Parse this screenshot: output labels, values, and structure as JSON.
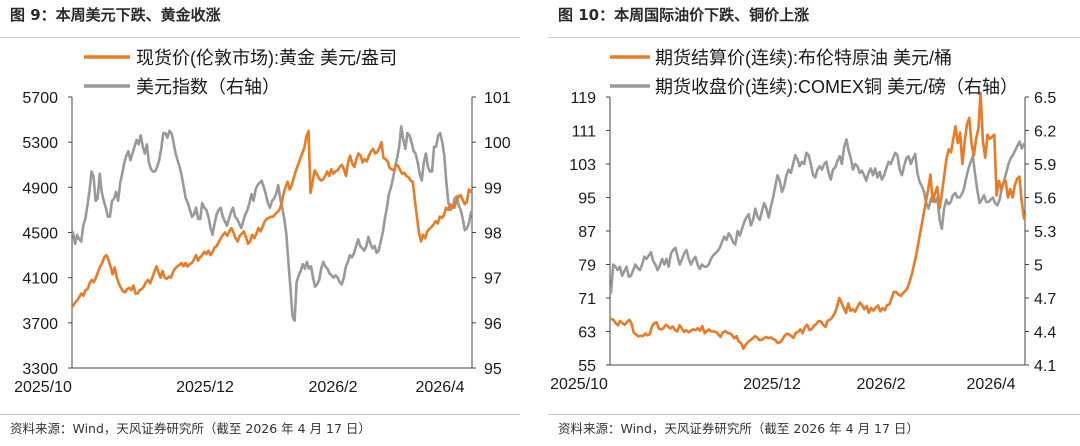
{
  "colors": {
    "gold": "#EB7A23",
    "gray": "#999999",
    "axis": "#444444",
    "text": "#1a1a1a"
  },
  "chart_data": [
    {
      "type": "line",
      "figure_title": "图 9：本周美元下跌、黄金收涨",
      "source": "资料来源：Wind，天风证券研究所（截至 2026 年 4 月 17 日）",
      "x_ticks": [
        "2025/10",
        "2025/12",
        "2026/2",
        "2026/4"
      ],
      "ylim_left": [
        3300,
        5700
      ],
      "yticks_left": [
        "5700",
        "5300",
        "4900",
        "4500",
        "4100",
        "3700",
        "3300"
      ],
      "ylim_right": [
        95,
        101
      ],
      "yticks_right": [
        "101",
        "100",
        "99",
        "98",
        "97",
        "96",
        "95"
      ],
      "legend_location": "top-left",
      "series": [
        {
          "name": "现货价(伦敦市场):黄金 美元/盎司",
          "axis": "left",
          "color": "#EB7A23",
          "values": [
            3850,
            3880,
            3900,
            3930,
            3960,
            3940,
            3990,
            4000,
            4050,
            4080,
            4060,
            4100,
            4150,
            4200,
            4230,
            4280,
            4300,
            4260,
            4200,
            4130,
            4190,
            4100,
            4050,
            4010,
            3980,
            3970,
            4000,
            4010,
            3990,
            4030,
            3960,
            3960,
            3990,
            4000,
            4020,
            4060,
            4080,
            4050,
            4100,
            4150,
            4200,
            4150,
            4100,
            4160,
            4100,
            4090,
            4110,
            4100,
            4150,
            4180,
            4200,
            4210,
            4230,
            4200,
            4230,
            4200,
            4220,
            4230,
            4260,
            4300,
            4250,
            4280,
            4300,
            4330,
            4310,
            4340,
            4300,
            4330,
            4370,
            4380,
            4420,
            4450,
            4480,
            4500,
            4470,
            4510,
            4540,
            4500,
            4450,
            4420,
            4470,
            4490,
            4510,
            4460,
            4400,
            4420,
            4480,
            4450,
            4490,
            4540,
            4510,
            4550,
            4600,
            4620,
            4630,
            4640,
            4640,
            4660,
            4680,
            4700,
            4750,
            4840,
            4900,
            4950,
            4880,
            4920,
            4990,
            5050,
            5100,
            5150,
            5200,
            5250,
            5350,
            5400,
            4850,
            4950,
            5050,
            5020,
            4980,
            4960,
            4970,
            5000,
            5040,
            5000,
            5060,
            5020,
            5040,
            5050,
            5080,
            5100,
            5060,
            5000,
            5120,
            5180,
            5110,
            5080,
            5150,
            5200,
            5180,
            5120,
            5150,
            5130,
            5180,
            5220,
            5240,
            5200,
            5210,
            5250,
            5300,
            5160,
            5150,
            5130,
            5070,
            5060,
            5050,
            5100,
            5090,
            5050,
            5020,
            5030,
            5000,
            4990,
            4960,
            4950,
            4800,
            4650,
            4500,
            4420,
            4480,
            4450,
            4510,
            4530,
            4550,
            4570,
            4600,
            4580,
            4640,
            4630,
            4650,
            4720,
            4700,
            4750,
            4730,
            4720,
            4780,
            4820,
            4830,
            4790,
            4750,
            4770,
            4880,
            4860
          ]
        },
        {
          "name": "美元指数（右轴）",
          "axis": "right",
          "color": "#999999",
          "values": [
            98.0,
            97.75,
            97.95,
            97.85,
            97.8,
            98.15,
            98.3,
            98.6,
            98.9,
            99.35,
            99.25,
            98.7,
            98.75,
            99.3,
            98.9,
            98.7,
            98.55,
            98.35,
            98.35,
            98.7,
            98.75,
            98.9,
            98.7,
            99.1,
            99.3,
            99.55,
            99.7,
            99.8,
            99.6,
            99.75,
            99.9,
            100.05,
            99.95,
            100.15,
            99.9,
            99.75,
            99.95,
            99.55,
            99.4,
            99.35,
            99.35,
            99.45,
            99.6,
            99.85,
            100.2,
            100.2,
            100.1,
            100.25,
            100.2,
            100.0,
            99.75,
            99.6,
            99.45,
            99.25,
            99.0,
            98.75,
            98.65,
            98.5,
            98.35,
            98.4,
            98.55,
            98.3,
            98.3,
            98.65,
            98.55,
            98.5,
            98.35,
            98.1,
            97.95,
            98.2,
            98.4,
            98.5,
            98.55,
            98.35,
            98.25,
            98.15,
            98.3,
            98.45,
            98.55,
            98.35,
            98.3,
            98.2,
            98.1,
            98.25,
            98.4,
            98.5,
            98.65,
            98.85,
            98.7,
            98.95,
            99.05,
            99.1,
            99.15,
            99.0,
            98.85,
            98.65,
            98.55,
            98.7,
            98.75,
            98.85,
            99.05,
            98.75,
            98.55,
            98.3,
            97.95,
            97.35,
            96.75,
            96.15,
            96.05,
            96.9,
            97.05,
            97.15,
            97.3,
            97.2,
            97.35,
            97.2,
            97.25,
            97.0,
            96.8,
            96.85,
            96.95,
            97.2,
            97.35,
            97.25,
            97.2,
            97.1,
            97.05,
            97.0,
            97.05,
            97.0,
            96.9,
            96.85,
            97.0,
            97.25,
            97.35,
            97.5,
            97.45,
            97.55,
            97.7,
            97.85,
            97.7,
            97.65,
            97.6,
            97.7,
            97.9,
            97.75,
            97.65,
            97.7,
            97.55,
            97.6,
            97.8,
            98.0,
            98.3,
            98.55,
            98.85,
            99.0,
            99.2,
            99.45,
            99.65,
            99.9,
            100.35,
            100.05,
            99.85,
            100.2,
            100.15,
            100.0,
            99.8,
            99.75,
            99.55,
            99.3,
            99.15,
            99.55,
            99.75,
            99.45,
            99.35,
            99.35,
            99.9,
            99.9,
            100.15,
            100.2,
            100.0,
            99.7,
            99.1,
            98.65,
            98.5,
            98.55,
            98.75,
            98.8,
            98.6,
            98.5,
            98.3,
            98.05,
            98.1,
            98.2,
            98.45
          ]
        }
      ]
    },
    {
      "type": "line",
      "figure_title": "图 10：本周国际油价下跌、铜价上涨",
      "source": "资料来源：Wind，天风证券研究所（截至 2026 年 4 月 17 日）",
      "x_ticks": [
        "2025/10",
        "2025/12",
        "2026/2",
        "2026/4"
      ],
      "ylim_left": [
        55,
        119
      ],
      "yticks_left": [
        "119",
        "111",
        "103",
        "95",
        "87",
        "79",
        "71",
        "63",
        "55"
      ],
      "ylim_right": [
        4.1,
        6.5
      ],
      "yticks_right": [
        "6.5",
        "6.2",
        "5.9",
        "5.6",
        "5.3",
        "5",
        "4.7",
        "4.4",
        "4.1"
      ],
      "legend_location": "top-left",
      "series": [
        {
          "name": "期货结算价(连续):布伦特原油 美元/桶",
          "axis": "left",
          "color": "#EB7A23",
          "values": [
            66.0,
            65.8,
            65.0,
            64.5,
            65.5,
            65.0,
            64.6,
            65.3,
            65.8,
            64.9,
            62.7,
            62.3,
            61.8,
            62.0,
            61.9,
            62.5,
            62.1,
            62.4,
            64.3,
            65.0,
            65.2,
            63.7,
            63.5,
            63.8,
            64.6,
            64.2,
            63.7,
            64.2,
            63.4,
            63.0,
            64.5,
            63.8,
            62.9,
            63.3,
            62.8,
            63.2,
            63.5,
            63.3,
            63.8,
            63.2,
            64.3,
            62.6,
            63.1,
            63.5,
            63.0,
            63.0,
            62.9,
            62.3,
            61.7,
            62.8,
            63.1,
            62.7,
            62.6,
            62.2,
            61.4,
            61.9,
            60.6,
            60.2,
            58.9,
            59.8,
            60.5,
            60.9,
            61.3,
            61.9,
            61.6,
            61.0,
            61.0,
            61.4,
            61.7,
            61.4,
            61.6,
            61.2,
            61.0,
            60.3,
            60.4,
            61.0,
            61.9,
            62.5,
            62.3,
            61.9,
            61.5,
            62.7,
            62.9,
            63.5,
            62.6,
            64.1,
            64.6,
            63.3,
            63.6,
            64.4,
            64.8,
            65.5,
            65.4,
            64.6,
            64.1,
            65.6,
            65.8,
            66.4,
            67.3,
            68.8,
            71.0,
            69.9,
            68.6,
            67.4,
            69.7,
            67.9,
            68.3,
            67.7,
            68.8,
            69.9,
            69.3,
            68.3,
            69.1,
            67.5,
            68.6,
            68.0,
            68.7,
            69.2,
            67.8,
            68.6,
            68.1,
            69.3,
            69.5,
            71.0,
            72.5,
            72.4,
            71.8,
            71.5,
            72.2,
            72.7,
            73.4,
            75.1,
            77.0,
            79.5,
            82.0,
            85.0,
            88.0,
            91.0,
            94.0,
            97.0,
            100.5,
            94.0,
            96.0,
            97.5,
            92.5,
            96.0,
            100.0,
            104.2,
            106.5,
            105.8,
            109.0,
            112.0,
            108.0,
            110.5,
            103.0,
            108.5,
            112.5,
            114.0,
            108.0,
            105.0,
            109.0,
            111.5,
            120.0,
            108.5,
            104.5,
            110.0,
            109.0,
            109.5,
            110.0,
            95.5,
            99.0,
            97.0,
            98.5,
            99.0,
            95.0,
            97.0,
            95.0,
            98.0,
            99.5,
            100.0,
            94.0,
            90.0
          ]
        },
        {
          "name": "期货收盘价(连续):COMEX铜 美元/磅（右轴）",
          "axis": "right",
          "color": "#999999",
          "values": [
            4.75,
            5.0,
            4.98,
            4.95,
            4.98,
            4.9,
            4.94,
            4.98,
            4.89,
            4.9,
            4.95,
            5.0,
            4.97,
            4.95,
            5.0,
            5.07,
            5.05,
            5.08,
            5.11,
            5.03,
            5.0,
            4.95,
            4.99,
            5.05,
            5.0,
            5.05,
            4.98,
            5.1,
            5.13,
            5.15,
            5.07,
            5.0,
            5.05,
            5.1,
            5.13,
            5.05,
            5.0,
            5.04,
            5.07,
            5.0,
            4.96,
            5.0,
            4.98,
            4.98,
            5.0,
            5.05,
            5.08,
            5.1,
            5.12,
            5.15,
            5.2,
            5.25,
            5.22,
            5.28,
            5.25,
            5.2,
            5.18,
            5.3,
            5.26,
            5.32,
            5.38,
            5.42,
            5.45,
            5.35,
            5.4,
            5.5,
            5.43,
            5.4,
            5.48,
            5.55,
            5.5,
            5.42,
            5.52,
            5.6,
            5.7,
            5.8,
            5.75,
            5.65,
            5.7,
            5.8,
            5.85,
            5.82,
            5.9,
            5.98,
            5.94,
            5.88,
            5.92,
            5.9,
            6.0,
            5.98,
            5.9,
            5.8,
            5.78,
            5.85,
            5.88,
            5.85,
            5.9,
            5.92,
            5.82,
            5.76,
            5.85,
            5.87,
            5.93,
            5.97,
            5.9,
            6.05,
            6.12,
            6.02,
            5.95,
            5.85,
            5.9,
            5.88,
            5.82,
            5.84,
            5.8,
            5.75,
            5.82,
            5.86,
            5.8,
            5.86,
            5.78,
            5.83,
            5.76,
            5.8,
            5.86,
            5.92,
            5.9,
            5.95,
            6.0,
            5.98,
            5.85,
            5.8,
            5.88,
            5.95,
            5.97,
            5.9,
            5.95,
            5.99,
            5.82,
            5.74,
            5.7,
            5.65,
            5.55,
            5.5,
            5.58,
            5.62,
            5.56,
            5.6,
            5.4,
            5.32,
            5.5,
            5.58,
            5.54,
            5.56,
            5.62,
            5.64,
            5.6,
            5.6,
            5.63,
            5.68,
            5.78,
            5.86,
            5.92,
            5.97,
            5.8,
            5.66,
            5.55,
            5.58,
            5.62,
            5.56,
            5.56,
            5.58,
            5.6,
            5.55,
            5.53,
            5.58,
            5.68,
            5.75,
            5.82,
            5.9,
            5.95,
            5.98,
            6.02,
            6.06,
            6.1,
            6.04,
            6.08
          ]
        }
      ]
    }
  ]
}
